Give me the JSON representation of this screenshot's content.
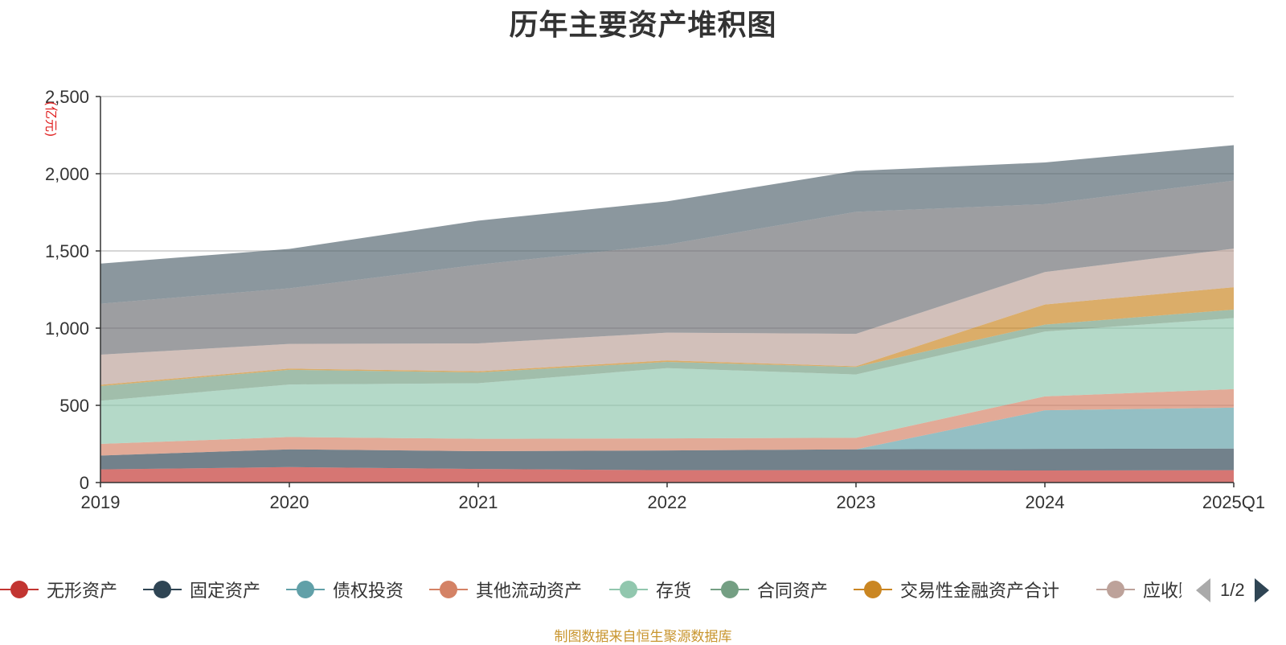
{
  "title": "历年主要资产堆积图",
  "source_note": "制图数据来自恒生聚源数据库",
  "legend_page": "1/2",
  "chart_data": {
    "type": "area",
    "stacked": true,
    "title": "历年主要资产堆积图",
    "ylabel": "(亿元)",
    "xlabel": "",
    "categories": [
      "2019",
      "2020",
      "2021",
      "2022",
      "2023",
      "2024",
      "2025Q1"
    ],
    "ylim": [
      0,
      2500
    ],
    "yticks": [
      0,
      500,
      1000,
      1500,
      2000,
      2500
    ],
    "ytick_labels": [
      "0",
      "500",
      "1,000",
      "1,500",
      "2,000",
      "2,500"
    ],
    "grid": true,
    "legend_position": "bottom",
    "series": [
      {
        "name": "无形资产",
        "color": "#c23531",
        "values": [
          85,
          100,
          88,
          80,
          80,
          78,
          80
        ]
      },
      {
        "name": "固定资产",
        "color": "#2f4554",
        "values": [
          90,
          115,
          115,
          128,
          135,
          140,
          140
        ]
      },
      {
        "name": "债权投资",
        "color": "#61a0a8",
        "values": [
          0,
          0,
          0,
          0,
          0,
          250,
          265
        ]
      },
      {
        "name": "其他流动资产",
        "color": "#d48265",
        "values": [
          75,
          80,
          80,
          78,
          75,
          90,
          120
        ]
      },
      {
        "name": "存货",
        "color": "#91c7ae",
        "values": [
          280,
          340,
          360,
          455,
          410,
          420,
          460
        ]
      },
      {
        "name": "合同资产",
        "color": "#749f83",
        "values": [
          95,
          95,
          70,
          40,
          48,
          45,
          55
        ]
      },
      {
        "name": "交易性金融资产合计",
        "color": "#ca8622",
        "values": [
          8,
          8,
          8,
          10,
          5,
          130,
          145
        ]
      },
      {
        "name": "应收账款",
        "color": "#bda29a",
        "values": [
          195,
          160,
          180,
          180,
          210,
          210,
          250
        ]
      },
      {
        "name": "",
        "color": "#6e7074",
        "values": [
          330,
          360,
          510,
          570,
          790,
          440,
          440
        ]
      },
      {
        "name": "",
        "color": "#546570",
        "values": [
          260,
          255,
          285,
          280,
          265,
          270,
          230
        ]
      }
    ]
  },
  "legend": [
    {
      "label": "无形资产",
      "color": "#c23531"
    },
    {
      "label": "固定资产",
      "color": "#2f4554"
    },
    {
      "label": "债权投资",
      "color": "#61a0a8"
    },
    {
      "label": "其他流动资产",
      "color": "#d48265"
    },
    {
      "label": "存货",
      "color": "#91c7ae"
    },
    {
      "label": "合同资产",
      "color": "#749f83"
    },
    {
      "label": "交易性金融资产合计",
      "color": "#ca8622"
    },
    {
      "label": "应收账款",
      "color": "#bda29a"
    }
  ]
}
